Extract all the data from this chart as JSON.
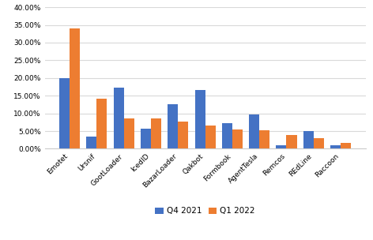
{
  "categories": [
    "Emotet",
    "Ursnif",
    "GootLoader",
    "IcedID",
    "BazarLoader",
    "Qakbot",
    "Formbook",
    "AgentTesla",
    "Remcos",
    "REdLine",
    "Raccoon"
  ],
  "q4_2021": [
    0.2,
    0.034,
    0.173,
    0.056,
    0.127,
    0.165,
    0.072,
    0.098,
    0.01,
    0.051,
    0.011
  ],
  "q1_2022": [
    0.34,
    0.141,
    0.086,
    0.085,
    0.078,
    0.066,
    0.054,
    0.052,
    0.04,
    0.031,
    0.017
  ],
  "q4_color": "#4472C4",
  "q1_color": "#ED7D31",
  "ylim": [
    0,
    0.4
  ],
  "yticks": [
    0.0,
    0.05,
    0.1,
    0.15,
    0.2,
    0.25,
    0.3,
    0.35,
    0.4
  ],
  "legend_labels": [
    "Q4 2021",
    "Q1 2022"
  ],
  "bar_width": 0.38,
  "background_color": "#ffffff",
  "grid_color": "#d9d9d9"
}
